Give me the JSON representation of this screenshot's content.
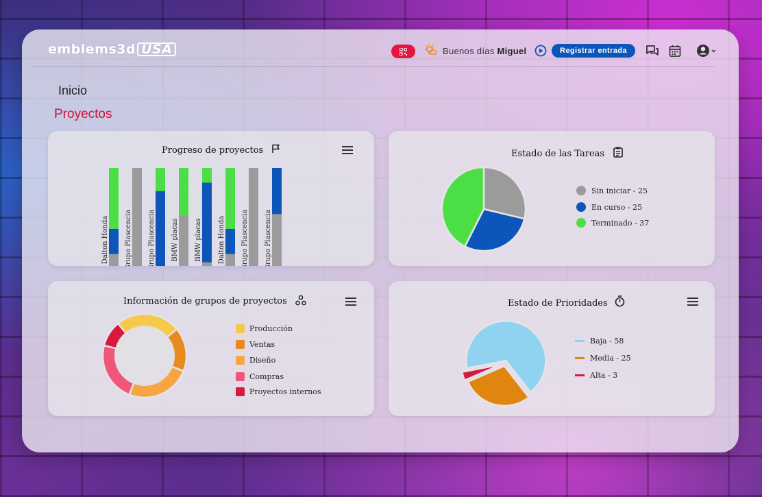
{
  "app": {
    "logo_main": "emblems3d",
    "logo_suffix": "USA"
  },
  "header": {
    "greeting_prefix": "Buenos días",
    "user_name": "Miguel",
    "checkin_label": "Registrar entrada"
  },
  "breadcrumb": "Inicio",
  "page_title": "Proyectos",
  "colors": {
    "accent_red": "#e3163e",
    "primary_blue": "#0b56b8",
    "gray": "#9b9b9b",
    "green": "#4cdf45"
  },
  "cards": {
    "progress": {
      "title": "Progreso de proyectos"
    },
    "tasks": {
      "title": "Estado de las Tareas",
      "legend": [
        "Sin iniciar  - 25",
        "En curso - 25",
        "Terminado - 37"
      ]
    },
    "groups": {
      "title": "Información de grupos de proyectos",
      "legend": [
        "Producción",
        "Ventas",
        "Diseño",
        "Compras",
        "Proyectos internos"
      ]
    },
    "priorities": {
      "title": "Estado de Prioridades",
      "legend": [
        "Baja - 58",
        "Media - 25",
        "Alta - 3"
      ]
    }
  },
  "chart_data": [
    {
      "type": "bar",
      "stacked": true,
      "categories": [
        "Dalton Honda",
        "Grupo Plascencia",
        "Grupo Plascencia",
        "BMW placas",
        "BMW placas",
        "Dalton Honda",
        "Grupo Plascencia",
        "Grupo Plascencia"
      ],
      "series": [
        {
          "color": "#9b9b9b",
          "values": [
            18,
            100,
            0,
            55,
            10,
            18,
            100,
            56
          ]
        },
        {
          "color": "#0b56b8",
          "values": [
            24,
            0,
            78,
            0,
            76,
            24,
            0,
            44
          ]
        },
        {
          "color": "#4cdf45",
          "values": [
            58,
            0,
            22,
            45,
            14,
            58,
            0,
            0
          ]
        }
      ],
      "ylim": [
        0,
        100
      ]
    },
    {
      "type": "pie",
      "labels": [
        "Sin iniciar",
        "En curso",
        "Terminado"
      ],
      "values": [
        25,
        25,
        37
      ],
      "colors": [
        "#9b9b9b",
        "#0b56b8",
        "#4cdf45"
      ]
    },
    {
      "type": "pie",
      "donut": true,
      "labels": [
        "Producción",
        "Ventas",
        "Diseño",
        "Compras",
        "Proyectos internos"
      ],
      "values": [
        25,
        17,
        25,
        23,
        10
      ],
      "colors": [
        "#f7c948",
        "#e88b1e",
        "#f5a643",
        "#f1557a",
        "#d9183e"
      ]
    },
    {
      "type": "pie",
      "labels": [
        "Baja",
        "Media",
        "Alta"
      ],
      "values": [
        58,
        25,
        3
      ],
      "colors": [
        "#8fd3f0",
        "#e08510",
        "#d9183e"
      ]
    }
  ]
}
